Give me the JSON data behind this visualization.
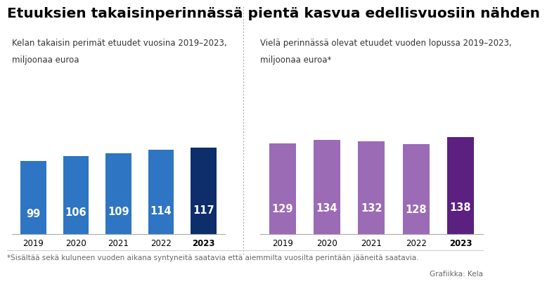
{
  "title": "Etuuksien takaisinperinnässä pientä kasvua edellisvuosiin nähden",
  "left_subtitle_line1": "Kelan takaisin perimät etuudet vuosina 2019–2023,",
  "left_subtitle_line2": "miljoonaa euroa",
  "right_subtitle_line1": "Vielä perinnässä olevat etuudet vuoden lopussa 2019–2023,",
  "right_subtitle_line2": "miljoonaa euroa*",
  "footnote": "*Sisältää sekä kuluneen vuoden aikana syntyneitä saatavia että aiemmilta vuosilta perintään jääneitä saatavia.",
  "credit": "Grafiikka: Kela",
  "years": [
    "2019",
    "2020",
    "2021",
    "2022",
    "2023"
  ],
  "left_values": [
    99,
    106,
    109,
    114,
    117
  ],
  "right_values": [
    129,
    134,
    132,
    128,
    138
  ],
  "left_colors": [
    "#2e75c3",
    "#2e75c3",
    "#2e75c3",
    "#2e75c3",
    "#0d2d6b"
  ],
  "right_colors": [
    "#9b6bb5",
    "#9b6bb5",
    "#9b6bb5",
    "#9b6bb5",
    "#5b2080"
  ],
  "left_ylim": [
    0,
    200
  ],
  "right_ylim": [
    0,
    210
  ],
  "background_color": "#ffffff",
  "title_fontsize": 14.5,
  "subtitle_fontsize": 8.5,
  "value_fontsize": 10.5,
  "tick_fontsize": 8.5,
  "footnote_fontsize": 7.5
}
